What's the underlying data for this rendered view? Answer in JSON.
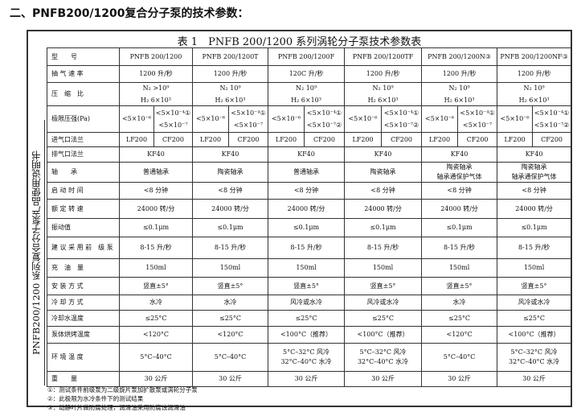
{
  "heading": "二、PNFB200/1200复合分子泵的技术参数：",
  "table_title": "表 1　PNFB 200/1200  系列涡轮分子泵技术参数表",
  "side_label": "PNFB200/1200 系列复合分子泵产品使用说明书",
  "models": [
    "PNFB 200/1200",
    "PNFB 200/1200T",
    "PNFB 200/1200F",
    "PNFB 200/1200TF",
    "PNFB 200/1200N③",
    "PNFB 200/1200NF③"
  ],
  "labels": {
    "model": "型　　号",
    "speed": "抽 气 速 率",
    "compression": "压　缩　比",
    "ultimate": "极限压强(Pa)",
    "inlet": "进气口法兰",
    "outlet": "排气口法兰",
    "bearing": "轴　　承",
    "start": "启 动 时 间",
    "rpm": "额 定 转 速",
    "vibration": "振动值",
    "backing": "建 议 采 用 前　级 泵",
    "oil": "充　油　量",
    "mount": "安 装 方 式",
    "cooling": "冷 却 方 式",
    "water": "冷却水温度",
    "bake": "泵体烘烤温度",
    "ambient": "环 境 温 度",
    "weight": "重　　量"
  },
  "speed": [
    "1200 升/秒",
    "1200 升/秒",
    "120C 升/秒",
    "1200 升/秒",
    "1200 升/秒",
    "1200 升/秒"
  ],
  "compression": {
    "n2": [
      "N₂ >10⁹",
      "N₂ 10⁹",
      "N₂ 10⁹",
      "N₂ 10⁹",
      "N₂ 10⁹",
      "N₂ 10⁹"
    ],
    "h2": "H₂ 6×10³"
  },
  "ultimate": {
    "a": "<5×10⁻⁶",
    "b": [
      "<5×10⁻⁴①",
      "<5×10⁻⁴①",
      "<5×10⁻⁴①",
      "<5×10⁻⁴①",
      "<5×10⁻⁴①",
      "<5×10⁻⁴①"
    ],
    "c": [
      "<5×10⁻⁷",
      "<5×10⁻⁷",
      "<5×10⁻⁷②",
      "<5×10⁻⁷②",
      "<5×10⁻⁷",
      "<5×10⁻⁷②"
    ]
  },
  "inlet": [
    "LF200",
    "CF200"
  ],
  "outlet": "KF40",
  "bearing": [
    "普通轴承",
    "陶瓷轴承",
    "普通轴承",
    "陶瓷轴承",
    "陶瓷轴承\n轴承通保护气体",
    "陶瓷轴承\n轴承通保护气体"
  ],
  "start": "<8 分钟",
  "rpm": "24000 转/分",
  "vibration": "≤0.1μm",
  "backing": "8-15 升/秒",
  "oil": "150ml",
  "mount": "竖直±5°",
  "cooling": [
    "水冷",
    "水冷",
    "风冷或水冷",
    "风冷或水冷",
    "水冷",
    "风冷或水冷"
  ],
  "water": "≤25°C",
  "bake": [
    "<120°C",
    "<120°C",
    "<100°C（推荐）",
    "<100°C（推荐）",
    "<120°C",
    "<100°C（推荐）"
  ],
  "ambient": [
    "5°C–40°C",
    "5°C–40°C",
    "5°C–32°C 风冷\n32°C–40°C 水冷",
    "5°C–32°C 风冷\n32°C–40°C 水冷",
    "5°C–40°C",
    "5°C–32°C 风冷\n32°C–40°C 水冷"
  ],
  "weight": "30 公斤",
  "notes": [
    "①：测试条件前级泵为二级旋片泵加扩散泵或涡轮分子泵",
    "②：此极限为水冷条件下的测试结果",
    "③：动静叶片做防腐处理，润滑油采用防腐蚀润滑油"
  ]
}
